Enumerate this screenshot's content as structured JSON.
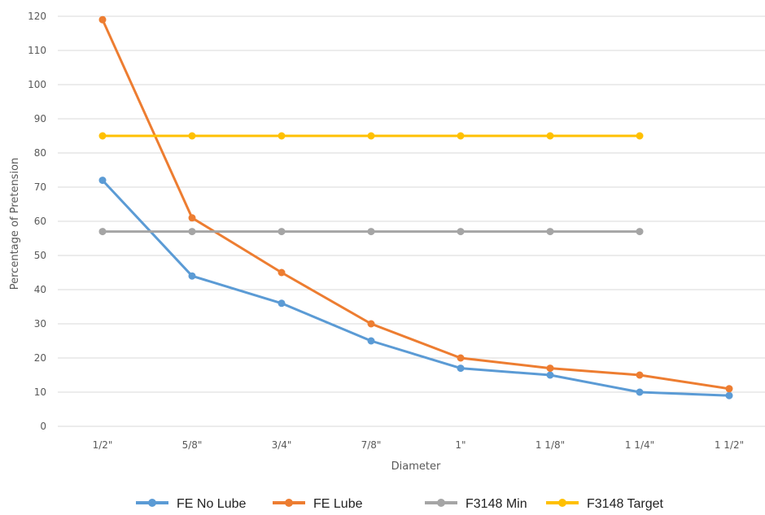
{
  "chart_data": {
    "type": "line",
    "xlabel": "Diameter",
    "ylabel": "Percentage of Pretension",
    "categories": [
      "1/2\"",
      "5/8\"",
      "3/4\"",
      "7/8\"",
      "1\"",
      "1 1/8\"",
      "1 1/4\"",
      "1 1/2\""
    ],
    "ylim": [
      0,
      120
    ],
    "yticks": [
      0,
      10,
      20,
      30,
      40,
      50,
      60,
      70,
      80,
      90,
      100,
      110,
      120
    ],
    "grid": true,
    "legend_position": "bottom",
    "series": [
      {
        "name": "FE No Lube",
        "color": "#5B9BD5",
        "values": [
          72,
          44,
          36,
          25,
          17,
          15,
          10,
          9
        ]
      },
      {
        "name": "FE Lube",
        "color": "#ED7D31",
        "values": [
          119,
          61,
          45,
          30,
          20,
          17,
          15,
          11
        ]
      },
      {
        "name": "F3148 Min",
        "color": "#A5A5A5",
        "values": [
          57,
          57,
          57,
          57,
          57,
          57,
          57,
          null
        ]
      },
      {
        "name": "F3148 Target",
        "color": "#FFC000",
        "values": [
          85,
          85,
          85,
          85,
          85,
          85,
          85,
          null
        ]
      }
    ]
  }
}
